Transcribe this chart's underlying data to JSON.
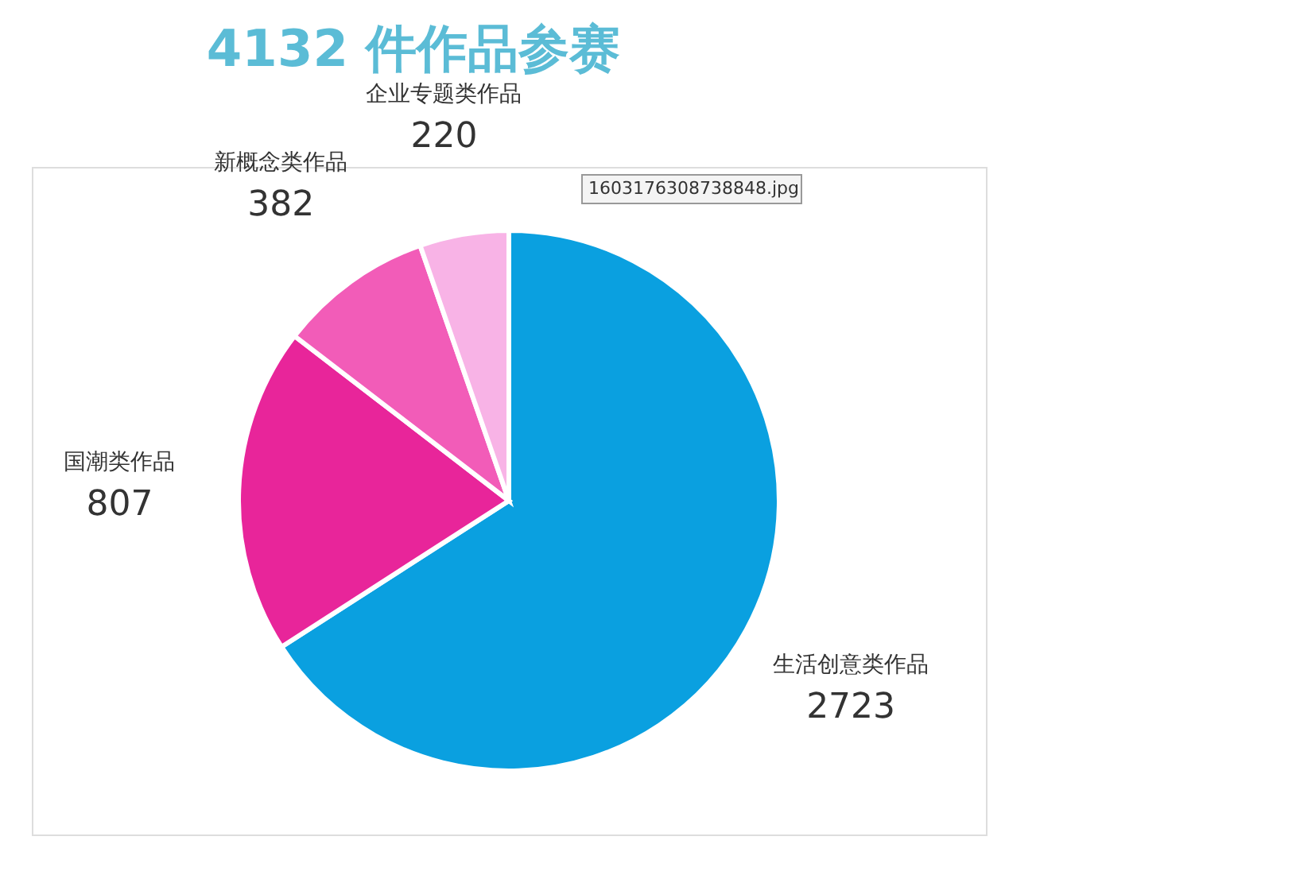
{
  "chart_data": {
    "type": "pie",
    "title": "4132 件作品参赛",
    "categories": [
      "生活创意类作品",
      "国潮类作品",
      "新概念类作品",
      "企业专题类作品"
    ],
    "values": [
      2723,
      807,
      382,
      220
    ],
    "colors": [
      "#0aa0e0",
      "#e8259a",
      "#f25cb8",
      "#f8b3e6"
    ],
    "data_labels": true,
    "annotations": [
      "1603176308738848.jpg"
    ]
  }
}
